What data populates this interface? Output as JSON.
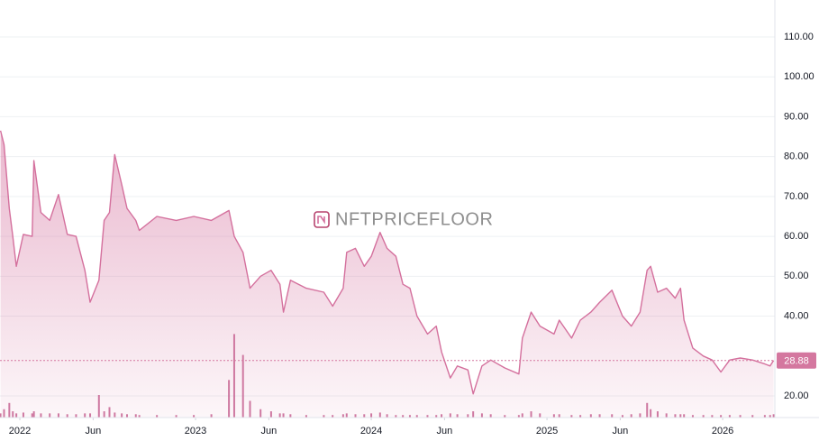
{
  "chart_data": {
    "type": "area",
    "watermark": "NFTPRICEFLOOR",
    "x": [
      2021.89,
      2021.91,
      2021.94,
      2021.96,
      2021.98,
      2022.02,
      2022.07,
      2022.08,
      2022.12,
      2022.17,
      2022.22,
      2022.27,
      2022.32,
      2022.37,
      2022.4,
      2022.45,
      2022.48,
      2022.51,
      2022.54,
      2022.58,
      2022.61,
      2022.66,
      2022.68,
      2022.78,
      2022.89,
      2022.99,
      2023.09,
      2023.19,
      2023.22,
      2023.27,
      2023.31,
      2023.37,
      2023.43,
      2023.48,
      2023.5,
      2023.54,
      2023.63,
      2023.73,
      2023.78,
      2023.84,
      2023.86,
      2023.91,
      2023.96,
      2024.0,
      2024.05,
      2024.09,
      2024.14,
      2024.18,
      2024.22,
      2024.26,
      2024.32,
      2024.37,
      2024.4,
      2024.45,
      2024.49,
      2024.55,
      2024.58,
      2024.63,
      2024.68,
      2024.76,
      2024.84,
      2024.86,
      2024.91,
      2024.96,
      2025.04,
      2025.07,
      2025.14,
      2025.19,
      2025.25,
      2025.3,
      2025.37,
      2025.43,
      2025.48,
      2025.53,
      2025.57,
      2025.59,
      2025.63,
      2025.68,
      2025.73,
      2025.76,
      2025.78,
      2025.83,
      2025.89,
      2025.94,
      2025.99,
      2026.04,
      2026.1,
      2026.17,
      2026.24,
      2026.27,
      2026.29
    ],
    "series": [
      {
        "color": "#d4709d",
        "values": [
          86.5,
          83,
          67,
          60,
          52.5,
          60.5,
          60,
          79,
          66,
          64,
          70.5,
          60.5,
          60,
          51.5,
          43.5,
          49,
          64,
          66,
          80.5,
          73,
          67,
          64,
          61.5,
          65,
          64,
          65,
          64,
          66.5,
          60,
          56,
          47,
          50,
          51.5,
          48,
          41,
          49,
          47,
          46,
          42.5,
          47,
          56,
          57,
          52.5,
          55,
          61,
          57,
          55,
          48,
          47,
          40,
          35.5,
          37.5,
          31,
          24.5,
          27.5,
          26.5,
          20.5,
          27.5,
          29,
          27,
          25.5,
          34.5,
          41,
          37.5,
          35.5,
          39,
          34.5,
          39,
          41,
          43.5,
          46.5,
          40,
          37.5,
          41,
          51.5,
          52.5,
          46,
          47,
          44.5,
          47,
          39,
          32,
          30,
          29,
          26,
          29,
          29.5,
          29,
          28,
          27.5,
          28.88
        ]
      },
      {
        "axis": "y2",
        "color": "#c2578a",
        "values": [
          1,
          2,
          3.5,
          1.5,
          1,
          1.2,
          1,
          1.5,
          1,
          1,
          1,
          0.8,
          0.8,
          1,
          1,
          5.4,
          1.5,
          2.5,
          1.2,
          1,
          0.8,
          0.8,
          0.6,
          0.6,
          0.6,
          0.6,
          0.8,
          9,
          20,
          15,
          4,
          2,
          1.5,
          1,
          1,
          0.8,
          0.6,
          0.6,
          0.6,
          0.8,
          1,
          0.8,
          0.8,
          1,
          1.2,
          0.8,
          0.6,
          0.6,
          0.6,
          0.6,
          0.6,
          0.6,
          0.8,
          1,
          0.8,
          0.8,
          1.5,
          1,
          0.8,
          0.6,
          0.6,
          1,
          1.5,
          1,
          0.8,
          0.8,
          0.6,
          0.6,
          0.8,
          0.8,
          0.8,
          0.6,
          0.8,
          1,
          3.5,
          2,
          1.5,
          1,
          0.8,
          0.8,
          0.8,
          0.6,
          0.6,
          0.6,
          0.6,
          0.6,
          0.6,
          0.6,
          0.6,
          0.6,
          0.8
        ]
      }
    ],
    "xlim": [
      2021.887,
      2026.297
    ],
    "xticks": [
      2022,
      {
        "value": 2022.417,
        "label": "Jun"
      },
      2023,
      {
        "value": 2023.417,
        "label": "Jun"
      },
      2024,
      {
        "value": 2024.417,
        "label": "Jun"
      },
      2025,
      {
        "value": 2025.417,
        "label": "Jun"
      },
      2026
    ],
    "ylim": [
      14.57,
      119.27
    ],
    "yticks": [
      {
        "value": 20,
        "label": "20.00"
      },
      {
        "value": 40,
        "label": "40.00"
      },
      {
        "value": 50,
        "label": "50.00"
      },
      {
        "value": 60,
        "label": "60.00"
      },
      {
        "value": 70,
        "label": "70.00"
      },
      {
        "value": 80,
        "label": "80.00"
      },
      {
        "value": 90,
        "label": "90.00"
      },
      {
        "value": 100,
        "label": "100.00"
      },
      {
        "value": 110,
        "label": "110.00"
      }
    ],
    "y2lim": [
      0,
      100
    ],
    "price_line": {
      "value": 28.88,
      "color": "#d4779f"
    },
    "grid": true
  }
}
